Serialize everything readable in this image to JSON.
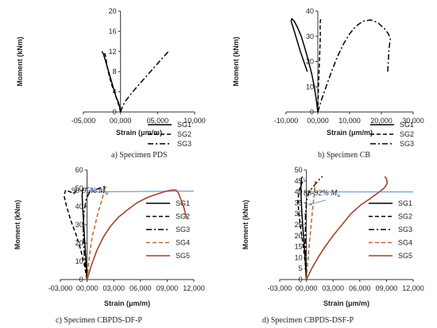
{
  "chart_data": [
    {
      "type": "line",
      "panel": "a",
      "caption": "a)     Specimen PDS",
      "xlabel": "Strain (μm/m)",
      "ylabel": "Moment (kNm)",
      "xlim": [
        -5000,
        10000
      ],
      "ylim": [
        0,
        20
      ],
      "xticks": [
        -5000,
        0,
        5000,
        10000
      ],
      "xtick_labels": [
        "-05,000",
        "00,000",
        "05,000",
        "10,000"
      ],
      "yticks": [
        0,
        4,
        8,
        12,
        16,
        20
      ],
      "ytick_labels": [
        "0",
        "4",
        "8",
        "12",
        "16",
        "20"
      ],
      "grid": false,
      "legend_position": "right",
      "series": [
        {
          "name": "SG1",
          "dash": "solid",
          "color": "#000000",
          "x": [
            0,
            -100,
            -300,
            -600,
            -1000,
            -1400,
            -1800,
            -2100,
            -2300,
            -2500
          ],
          "y": [
            0,
            1,
            2,
            3,
            5,
            7,
            9,
            10.5,
            11.5,
            12
          ]
        },
        {
          "name": "SG2",
          "dash": "dash",
          "color": "#000000",
          "x": [
            0,
            -150,
            -400,
            -700,
            -1100,
            -1500,
            -1800,
            -2000,
            -2200
          ],
          "y": [
            0,
            1,
            2,
            3.5,
            5,
            7,
            9,
            11,
            12
          ]
        },
        {
          "name": "SG3",
          "dash": "dashdot",
          "color": "#000000",
          "x": [
            0,
            300,
            700,
            1200,
            2000,
            2900,
            3800,
            4700,
            5600,
            6600
          ],
          "y": [
            0,
            1.2,
            2.2,
            3.2,
            4.6,
            6.1,
            7.6,
            9.1,
            10.6,
            12.2
          ]
        }
      ]
    },
    {
      "type": "line",
      "panel": "b",
      "caption": "b)     Specimen CB",
      "xlabel": "Strain (μm/m)",
      "ylabel": "Moment (kNm)",
      "xlim": [
        -10000,
        30000
      ],
      "ylim": [
        0,
        40
      ],
      "xticks": [
        -10000,
        0,
        10000,
        20000,
        30000
      ],
      "xtick_labels": [
        "-10,000",
        "00,000",
        "10,000",
        "20,000",
        "30,000"
      ],
      "yticks": [
        0,
        10,
        20,
        30,
        40
      ],
      "ytick_labels": [
        "0",
        "10",
        "20",
        "30",
        "40"
      ],
      "grid": false,
      "legend_position": "right",
      "series": [
        {
          "name": "SG1",
          "dash": "solid",
          "color": "#000000",
          "x": [
            0,
            -500,
            -1100,
            -1900,
            -2900,
            -4000,
            -5200,
            -6400,
            -7400,
            -8200,
            -8400,
            -7400,
            -5500,
            -3300
          ],
          "y": [
            0,
            5,
            10,
            15,
            20,
            25,
            30,
            33.5,
            36,
            37,
            36,
            32,
            24,
            16
          ]
        },
        {
          "name": "SG2",
          "dash": "dash",
          "color": "#000000",
          "x": [
            0,
            100,
            200,
            350,
            500,
            650,
            800,
            700,
            900
          ],
          "y": [
            0,
            5,
            10,
            15,
            20,
            25,
            30,
            35,
            37
          ]
        },
        {
          "name": "SG3",
          "dash": "dashdot",
          "color": "#000000",
          "x": [
            0,
            1200,
            2600,
            4300,
            6200,
            8100,
            10000,
            12000,
            14200,
            16600,
            18800,
            21000,
            22200,
            22800,
            22400,
            22000
          ],
          "y": [
            0,
            5,
            10,
            16,
            22,
            27,
            31,
            34,
            36,
            36.5,
            35.5,
            33,
            31,
            29,
            25,
            16
          ]
        }
      ]
    },
    {
      "type": "line",
      "panel": "c",
      "caption": "c) Specimen CBPDS-DF-P",
      "xlabel": "Strain (μm/m)",
      "ylabel": "Moment (kNm)",
      "xlim": [
        -3000,
        12000
      ],
      "ylim": [
        0,
        60
      ],
      "xticks": [
        -3000,
        0,
        3000,
        6000,
        9000,
        12000
      ],
      "xtick_labels": [
        "-03,000",
        "00,000",
        "03,000",
        "06,000",
        "09,000",
        "12,000"
      ],
      "yticks": [
        0,
        10,
        20,
        30,
        40,
        50,
        60
      ],
      "ytick_labels": [
        "0",
        "10",
        "20",
        "30",
        "40",
        "50",
        "60"
      ],
      "grid": false,
      "legend_position": "right",
      "annotation": "90-95%",
      "annotation_symbol": "M",
      "annotation_subscript": "u",
      "reference_line_y": 48,
      "series": [
        {
          "name": "SG1",
          "dash": "solid",
          "color": "#000000",
          "x": [
            0,
            -100,
            -200,
            -300,
            -400,
            -500,
            -550,
            -500,
            -400
          ],
          "y": [
            0,
            8,
            16,
            24,
            32,
            40,
            46,
            49,
            50
          ]
        },
        {
          "name": "SG2",
          "dash": "dash",
          "color": "#000000",
          "x": [
            0,
            -300,
            -700,
            -1200,
            -1800,
            -2300,
            -2600,
            -2400,
            -1900,
            -1500,
            -1100
          ],
          "y": [
            0,
            8,
            16,
            24,
            32,
            40,
            46,
            49,
            48,
            47,
            49
          ]
        },
        {
          "name": "SG3",
          "dash": "dashdot",
          "color": "#000000",
          "x": [
            0,
            -250,
            -400,
            -450,
            -300,
            -100,
            300,
            800,
            1400,
            2000
          ],
          "y": [
            0,
            10,
            20,
            30,
            38,
            44,
            48,
            49,
            50,
            51
          ]
        },
        {
          "name": "SG4",
          "dash": "dash",
          "color": "#C0662B",
          "x": [
            0,
            150,
            350,
            600,
            900,
            1200,
            1500,
            1750,
            1900,
            2000,
            2050,
            2100
          ],
          "y": [
            0,
            8,
            16,
            24,
            30,
            36,
            41,
            45,
            48,
            50,
            51,
            50
          ]
        },
        {
          "name": "SG5",
          "dash": "solid",
          "color": "#A0452A",
          "x": [
            0,
            500,
            1100,
            1800,
            2600,
            3500,
            4500,
            5600,
            6800,
            8000,
            9000,
            9600,
            10000,
            10300,
            10600,
            10900,
            11100,
            11300
          ],
          "y": [
            0,
            8,
            16,
            23,
            29,
            34,
            38,
            42,
            45,
            47,
            48.5,
            49,
            49,
            47,
            43,
            39,
            35,
            33
          ]
        }
      ]
    },
    {
      "type": "line",
      "panel": "d",
      "caption": "d) Specimen CBPDS-DSF-P",
      "xlabel": "Strain (μm/m)",
      "ylabel": "Moment (kNm)",
      "xlim": [
        -3000,
        12000
      ],
      "ylim": [
        0,
        50
      ],
      "xticks": [
        -3000,
        0,
        3000,
        6000,
        9000,
        12000
      ],
      "xtick_labels": [
        "-03,000",
        "00,000",
        "03,000",
        "06,000",
        "09,000",
        "12,000"
      ],
      "yticks": [
        0,
        5,
        10,
        15,
        20,
        25,
        30,
        35,
        40,
        45,
        50
      ],
      "ytick_labels": [
        "0",
        "5",
        "10",
        "15",
        "20",
        "25",
        "30",
        "35",
        "40",
        "45",
        "50"
      ],
      "grid": false,
      "legend_position": "right",
      "annotation": "88-92%",
      "annotation_symbol": "M",
      "annotation_subscript": "u",
      "reference_line_y": 40,
      "series": [
        {
          "name": "SG1",
          "dash": "solid",
          "color": "#000000",
          "x": [
            0,
            -80,
            -180,
            -280,
            -400,
            -500,
            -580,
            -620,
            -560,
            -450
          ],
          "y": [
            0,
            6,
            12,
            18,
            24,
            30,
            36,
            42,
            46,
            47
          ]
        },
        {
          "name": "SG2",
          "dash": "dash",
          "color": "#000000",
          "x": [
            0,
            -100,
            -250,
            -450,
            -650,
            -850,
            -950,
            -800,
            -500,
            -250
          ],
          "y": [
            0,
            6,
            12,
            18,
            24,
            30,
            36,
            41,
            44,
            46
          ]
        },
        {
          "name": "SG3",
          "dash": "dashdot",
          "color": "#000000",
          "x": [
            0,
            -60,
            -120,
            -100,
            50,
            300,
            700,
            1100,
            1500,
            1800
          ],
          "y": [
            0,
            10,
            20,
            30,
            37,
            40,
            42,
            44,
            46,
            47
          ]
        },
        {
          "name": "SG4",
          "dash": "dash",
          "color": "#C0662B",
          "x": [
            0,
            120,
            260,
            420,
            580,
            720,
            850,
            940,
            1000
          ],
          "y": [
            0,
            6,
            13,
            20,
            27,
            33,
            38,
            42,
            45
          ]
        },
        {
          "name": "SG5",
          "dash": "solid",
          "color": "#A0452A",
          "x": [
            0,
            600,
            1300,
            2100,
            3000,
            4000,
            5000,
            6100,
            7200,
            8200,
            8800,
            9100,
            9000,
            8800
          ],
          "y": [
            0,
            5,
            10,
            15,
            20,
            25,
            30,
            34,
            37,
            40,
            42,
            44,
            46,
            47
          ]
        }
      ]
    }
  ],
  "colors": {
    "reference_line": "#6E9FD8",
    "annotation_arrow": "#6E9FD8"
  }
}
